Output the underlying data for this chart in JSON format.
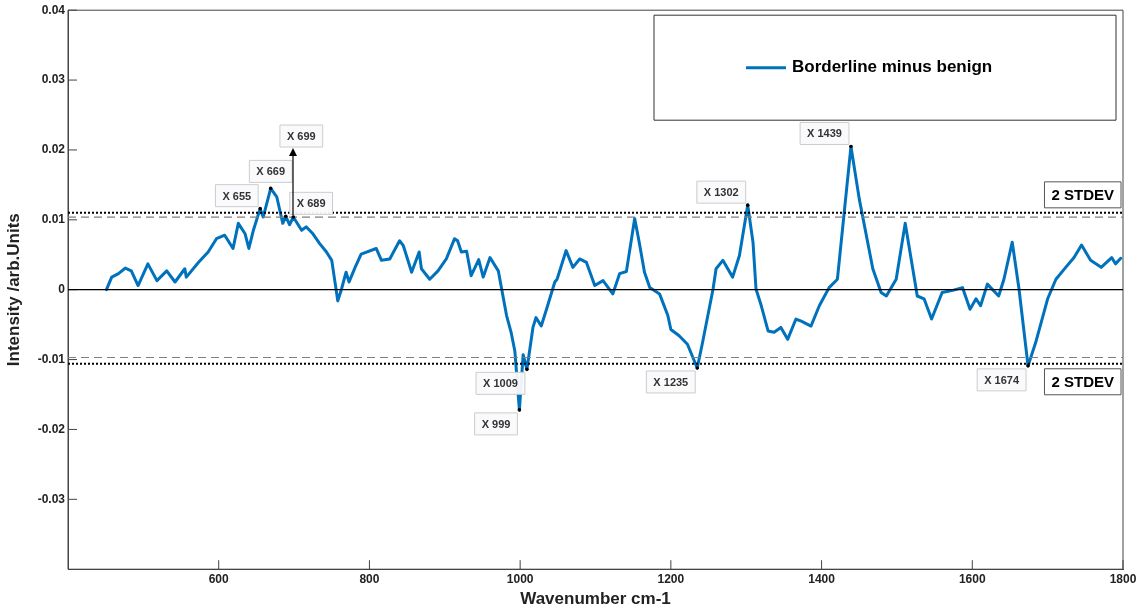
{
  "chart_data": {
    "type": "line",
    "xlabel": "Wavenumber cm-1",
    "ylabel": "Intensity /arb.Units",
    "xlim": [
      400,
      1800
    ],
    "xticks": [
      600,
      800,
      1000,
      1200,
      1400,
      1600,
      1800
    ],
    "ylim": [
      -0.04,
      0.04
    ],
    "yticks": [
      -0.03,
      -0.02,
      -0.01,
      0,
      0.01,
      0.02,
      0.03,
      0.04
    ],
    "grid": false,
    "legend": "top right",
    "marker": "none",
    "line_style": "solid",
    "series": [
      {
        "name": "Borderline minus benign",
        "color": "#0072bd",
        "x": [
          451,
          458,
          467,
          476,
          484,
          493,
          506,
          518,
          531,
          542,
          555,
          557,
          573,
          586,
          597,
          608,
          619,
          626,
          635,
          640,
          646,
          655,
          659,
          669,
          677,
          685,
          689,
          694,
          699,
          710,
          716,
          725,
          734,
          743,
          750,
          758,
          763,
          769,
          773,
          781,
          789,
          809,
          816,
          827,
          840,
          845,
          856,
          866,
          869,
          880,
          891,
          902,
          913,
          917,
          922,
          929,
          935,
          945,
          951,
          960,
          971,
          982,
          988,
          993,
          999,
          1004,
          1009,
          1017,
          1021,
          1028,
          1035,
          1046,
          1049,
          1061,
          1070,
          1079,
          1088,
          1099,
          1110,
          1123,
          1132,
          1141,
          1152,
          1158,
          1165,
          1172,
          1185,
          1196,
          1200,
          1211,
          1222,
          1235,
          1242,
          1256,
          1260,
          1269,
          1282,
          1291,
          1302,
          1309,
          1313,
          1320,
          1329,
          1337,
          1346,
          1355,
          1366,
          1373,
          1386,
          1397,
          1410,
          1421,
          1439,
          1450,
          1468,
          1479,
          1486,
          1499,
          1511,
          1527,
          1536,
          1546,
          1560,
          1574,
          1587,
          1597,
          1605,
          1611,
          1620,
          1635,
          1642,
          1653,
          1662,
          1674,
          1684,
          1700,
          1711,
          1724,
          1735,
          1745,
          1757,
          1771,
          1785,
          1790,
          1797
        ],
        "values": [
          0,
          0.0018,
          0.0023,
          0.0031,
          0.0027,
          0.0006,
          0.0037,
          0.0013,
          0.0027,
          0.0011,
          0.003,
          0.0018,
          0.0039,
          0.0054,
          0.0073,
          0.0078,
          0.0059,
          0.0095,
          0.008,
          0.0059,
          0.0085,
          0.0116,
          0.0104,
          0.0145,
          0.0133,
          0.0095,
          0.0105,
          0.0093,
          0.0104,
          0.0085,
          0.009,
          0.008,
          0.0066,
          0.0054,
          0.0042,
          -0.0016,
          0.0001,
          0.0025,
          0.0011,
          0.0032,
          0.0051,
          0.0059,
          0.0042,
          0.0044,
          0.007,
          0.0063,
          0.0025,
          0.0054,
          0.003,
          0.0015,
          0.0027,
          0.0044,
          0.0073,
          0.007,
          0.0054,
          0.0055,
          0.002,
          0.0043,
          0.0018,
          0.0046,
          0.0027,
          -0.0037,
          -0.0061,
          -0.0088,
          -0.0172,
          -0.0093,
          -0.0114,
          -0.0054,
          -0.004,
          -0.0052,
          -0.0028,
          0.0011,
          0.0015,
          0.0056,
          0.0032,
          0.0044,
          0.0039,
          0.0006,
          0.0013,
          -0.0006,
          0.0023,
          0.0026,
          0.0102,
          0.0068,
          0.0025,
          0.0003,
          -0.0006,
          -0.0037,
          -0.0057,
          -0.0066,
          -0.0078,
          -0.0112,
          -0.0076,
          0.0001,
          0.003,
          0.0042,
          0.0018,
          0.0049,
          0.0121,
          0.0068,
          0.0001,
          -0.0023,
          -0.0059,
          -0.0061,
          -0.0054,
          -0.0071,
          -0.0042,
          -0.0045,
          -0.0052,
          -0.0023,
          0.0003,
          0.0015,
          0.0205,
          0.013,
          0.003,
          -0.0004,
          -0.0009,
          0.0015,
          0.0095,
          -0.0009,
          -0.0013,
          -0.0042,
          -0.0004,
          -0.0001,
          0.0003,
          -0.0028,
          -0.0013,
          -0.0023,
          0.0008,
          -0.0009,
          0.0015,
          0.0068,
          0.0001,
          -0.0109,
          -0.0076,
          -0.0013,
          0.0015,
          0.0032,
          0.0046,
          0.0064,
          0.0042,
          0.0032,
          0.0046,
          0.0037,
          0.0045
        ]
      }
    ],
    "ref_lines": [
      {
        "axis": "y",
        "value": 0,
        "color": "#000000",
        "line_style": "solid"
      },
      {
        "axis": "y",
        "value": 0.011,
        "label": "2 STDEV",
        "color": "#000000",
        "line_style": "dotted"
      },
      {
        "axis": "y",
        "value": 0.0104,
        "color": "#7f7f7f",
        "line_style": "dashed"
      },
      {
        "axis": "y",
        "value": -0.0097,
        "color": "#7f7f7f",
        "line_style": "dashed"
      },
      {
        "axis": "y",
        "value": -0.0106,
        "label": "2 STDEV",
        "color": "#000000",
        "line_style": "dotted"
      }
    ],
    "annotations": [
      {
        "text": "X 655",
        "x": 655,
        "y": 0.0116
      },
      {
        "text": "X 669",
        "x": 669,
        "y": 0.0145
      },
      {
        "text": "X 689",
        "x": 689,
        "y": 0.0105
      },
      {
        "text": "X 699",
        "x": 699,
        "y": 0.0104
      },
      {
        "text": "X 999",
        "x": 999,
        "y": -0.0172
      },
      {
        "text": "X 1009",
        "x": 1009,
        "y": -0.0114
      },
      {
        "text": "X 1235",
        "x": 1235,
        "y": -0.0112
      },
      {
        "text": "X 1302",
        "x": 1302,
        "y": 0.0121
      },
      {
        "text": "X 1439",
        "x": 1439,
        "y": 0.0205
      },
      {
        "text": "X 1674",
        "x": 1674,
        "y": -0.0109
      }
    ]
  }
}
